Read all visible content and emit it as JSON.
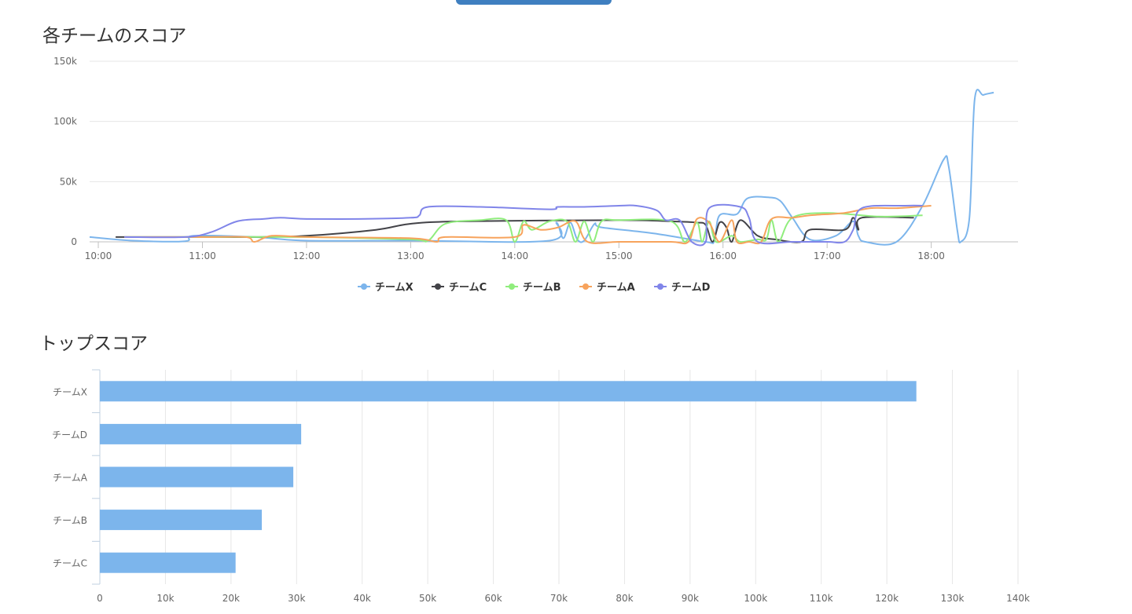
{
  "top_button": {
    "label": ""
  },
  "chart_data": [
    {
      "type": "line",
      "title": "各チームのスコア",
      "xlabel": "",
      "ylabel": "",
      "ylim": [
        0,
        150000
      ],
      "xlim": [
        "09:55",
        "18:50"
      ],
      "y_ticks": [
        0,
        50000,
        100000,
        150000
      ],
      "y_tick_labels": [
        "0",
        "50k",
        "100k",
        "150k"
      ],
      "x_tick_labels": [
        "10:00",
        "11:00",
        "12:00",
        "13:00",
        "14:00",
        "15:00",
        "16:00",
        "17:00",
        "18:00"
      ],
      "grid": true,
      "legend_position": "bottom",
      "series": [
        {
          "name": "チームX",
          "color": "#7cb5ec",
          "points": [
            [
              "09:55",
              4000
            ],
            [
              "10:20",
              1000
            ],
            [
              "10:50",
              500
            ],
            [
              "10:55",
              5000
            ],
            [
              "11:30",
              4000
            ],
            [
              "12:00",
              1000
            ],
            [
              "13:00",
              1000
            ],
            [
              "14:20",
              1000
            ],
            [
              "14:24",
              16000
            ],
            [
              "14:28",
              3000
            ],
            [
              "14:32",
              16000
            ],
            [
              "14:36",
              2000
            ],
            [
              "14:40",
              1000
            ],
            [
              "14:46",
              15000
            ],
            [
              "14:50",
              12000
            ],
            [
              "15:20",
              7000
            ],
            [
              "15:50",
              0
            ],
            [
              "15:55",
              1000
            ],
            [
              "15:58",
              22000
            ],
            [
              "16:08",
              23000
            ],
            [
              "16:14",
              36000
            ],
            [
              "16:26",
              37000
            ],
            [
              "16:33",
              34000
            ],
            [
              "16:40",
              20000
            ],
            [
              "16:50",
              2000
            ],
            [
              "17:05",
              5000
            ],
            [
              "17:15",
              17000
            ],
            [
              "17:18",
              5000
            ],
            [
              "17:22",
              0
            ],
            [
              "17:40",
              0
            ],
            [
              "17:55",
              30000
            ],
            [
              "18:07",
              68000
            ],
            [
              "18:10",
              63000
            ],
            [
              "18:15",
              10000
            ],
            [
              "18:17",
              0
            ],
            [
              "18:22",
              20000
            ],
            [
              "18:25",
              118000
            ],
            [
              "18:30",
              122000
            ],
            [
              "18:36",
              124000
            ]
          ]
        },
        {
          "name": "チームC",
          "color": "#434348",
          "points": [
            [
              "10:10",
              4000
            ],
            [
              "11:00",
              4000
            ],
            [
              "11:30",
              4000
            ],
            [
              "12:00",
              5000
            ],
            [
              "12:40",
              10000
            ],
            [
              "13:00",
              15000
            ],
            [
              "13:30",
              17000
            ],
            [
              "15:00",
              18000
            ],
            [
              "15:30",
              17000
            ],
            [
              "15:45",
              16000
            ],
            [
              "15:50",
              14000
            ],
            [
              "15:54",
              0
            ],
            [
              "15:58",
              16000
            ],
            [
              "16:02",
              12000
            ],
            [
              "16:05",
              0
            ],
            [
              "16:10",
              18000
            ],
            [
              "16:20",
              5000
            ],
            [
              "16:30",
              2000
            ],
            [
              "16:45",
              0
            ],
            [
              "16:50",
              10000
            ],
            [
              "17:10",
              10000
            ],
            [
              "17:15",
              20000
            ],
            [
              "17:18",
              10000
            ],
            [
              "17:20",
              20000
            ],
            [
              "17:50",
              20000
            ]
          ]
        },
        {
          "name": "チームB",
          "color": "#90ed7d",
          "points": [
            [
              "10:15",
              4000
            ],
            [
              "11:00",
              4000
            ],
            [
              "12:00",
              4000
            ],
            [
              "13:00",
              2000
            ],
            [
              "13:10",
              1000
            ],
            [
              "13:20",
              15000
            ],
            [
              "13:40",
              18000
            ],
            [
              "13:55",
              18000
            ],
            [
              "14:00",
              0
            ],
            [
              "14:05",
              17000
            ],
            [
              "14:10",
              10000
            ],
            [
              "14:20",
              17000
            ],
            [
              "14:30",
              17000
            ],
            [
              "14:35",
              0
            ],
            [
              "14:40",
              17000
            ],
            [
              "14:45",
              0
            ],
            [
              "14:50",
              17000
            ],
            [
              "15:00",
              18000
            ],
            [
              "15:30",
              17000
            ],
            [
              "15:38",
              0
            ],
            [
              "15:45",
              16000
            ],
            [
              "15:48",
              0
            ],
            [
              "15:52",
              17000
            ],
            [
              "15:56",
              0
            ],
            [
              "16:05",
              5000
            ],
            [
              "16:10",
              0
            ],
            [
              "16:20",
              2000
            ],
            [
              "16:25",
              2000
            ],
            [
              "16:28",
              18000
            ],
            [
              "16:32",
              0
            ],
            [
              "16:40",
              20000
            ],
            [
              "17:00",
              24000
            ],
            [
              "17:30",
              21000
            ],
            [
              "17:55",
              22000
            ]
          ]
        },
        {
          "name": "チームA",
          "color": "#f7a35c",
          "points": [
            [
              "10:15",
              4000
            ],
            [
              "11:00",
              4000
            ],
            [
              "11:25",
              4000
            ],
            [
              "11:30",
              0
            ],
            [
              "11:40",
              5000
            ],
            [
              "12:00",
              4000
            ],
            [
              "13:00",
              3000
            ],
            [
              "13:15",
              0
            ],
            [
              "13:20",
              4000
            ],
            [
              "14:00",
              4000
            ],
            [
              "14:05",
              14000
            ],
            [
              "14:15",
              10000
            ],
            [
              "14:25",
              12000
            ],
            [
              "14:35",
              17000
            ],
            [
              "14:42",
              0
            ],
            [
              "15:00",
              0
            ],
            [
              "15:30",
              0
            ],
            [
              "15:40",
              0
            ],
            [
              "15:45",
              19000
            ],
            [
              "15:52",
              16000
            ],
            [
              "15:58",
              0
            ],
            [
              "16:05",
              18000
            ],
            [
              "16:08",
              0
            ],
            [
              "16:15",
              0
            ],
            [
              "16:22",
              0
            ],
            [
              "16:28",
              19000
            ],
            [
              "16:40",
              20000
            ],
            [
              "16:50",
              22000
            ],
            [
              "17:10",
              24000
            ],
            [
              "17:25",
              28000
            ],
            [
              "17:40",
              28000
            ],
            [
              "18:00",
              30000
            ]
          ]
        },
        {
          "name": "チームD",
          "color": "#8085e9",
          "points": [
            [
              "10:15",
              4000
            ],
            [
              "10:50",
              4000
            ],
            [
              "11:05",
              8000
            ],
            [
              "11:20",
              17000
            ],
            [
              "11:35",
              19000
            ],
            [
              "11:45",
              20000
            ],
            [
              "12:00",
              19000
            ],
            [
              "12:30",
              19000
            ],
            [
              "13:00",
              20000
            ],
            [
              "13:05",
              22000
            ],
            [
              "13:10",
              29000
            ],
            [
              "13:40",
              29000
            ],
            [
              "14:20",
              27000
            ],
            [
              "14:25",
              29000
            ],
            [
              "14:40",
              29000
            ],
            [
              "15:00",
              30000
            ],
            [
              "15:10",
              30000
            ],
            [
              "15:22",
              26000
            ],
            [
              "15:27",
              18000
            ],
            [
              "15:35",
              18000
            ],
            [
              "15:42",
              0
            ],
            [
              "15:50",
              0
            ],
            [
              "15:52",
              28000
            ],
            [
              "16:10",
              29000
            ],
            [
              "16:15",
              20000
            ],
            [
              "16:20",
              0
            ],
            [
              "16:40",
              0
            ],
            [
              "17:00",
              0
            ],
            [
              "17:10",
              0
            ],
            [
              "17:15",
              10000
            ],
            [
              "17:20",
              28000
            ],
            [
              "17:45",
              30000
            ],
            [
              "17:55",
              30000
            ]
          ]
        }
      ]
    },
    {
      "type": "bar",
      "orientation": "horizontal",
      "title": "トップスコア",
      "xlabel": "",
      "ylabel": "",
      "xlim": [
        0,
        140000
      ],
      "categories": [
        "チームX",
        "チームD",
        "チームA",
        "チームB",
        "チームC"
      ],
      "values": [
        124500,
        30700,
        29500,
        24700,
        20700
      ],
      "x_tick_labels": [
        "0",
        "10k",
        "20k",
        "30k",
        "40k",
        "50k",
        "60k",
        "70k",
        "80k",
        "90k",
        "100k",
        "110k",
        "120k",
        "130k",
        "140k"
      ],
      "grid": true,
      "bar_color": "#7cb5ec"
    }
  ]
}
